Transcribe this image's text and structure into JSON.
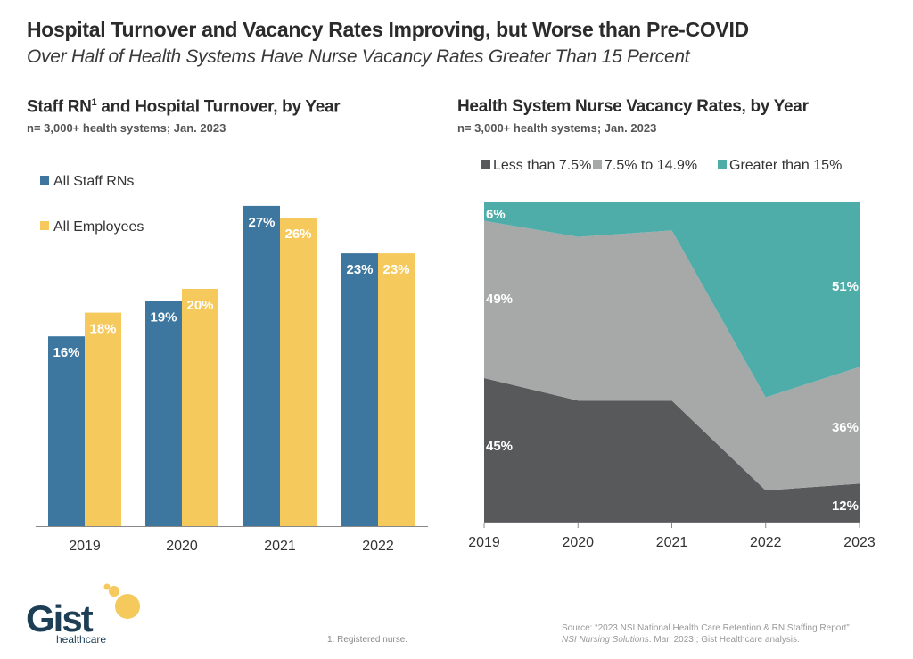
{
  "header": {
    "title": "Hospital Turnover and Vacancy Rates Improving, but Worse than Pre-COVID",
    "subtitle": "Over Half of Health Systems Have Nurse Vacancy Rates Greater Than 15 Percent"
  },
  "left_panel": {
    "title_main": "Staff RN",
    "title_sup": "1",
    "title_rest": " and Hospital Turnover, by Year",
    "note": "n= 3,000+ health systems; Jan. 2023"
  },
  "right_panel": {
    "title": "Health System Nurse Vacancy Rates, by Year",
    "note": "n= 3,000+ health systems; Jan. 2023"
  },
  "colors": {
    "staff_rn": "#3d77a0",
    "all_employees": "#f5c95c",
    "less_than_7_5": "#58595b",
    "mid": "#a7a9a9",
    "greater_than_15": "#4fada9"
  },
  "chart_data": [
    {
      "type": "bar",
      "title": "Staff RN and Hospital Turnover, by Year",
      "categories": [
        "2019",
        "2020",
        "2021",
        "2022"
      ],
      "series": [
        {
          "name": "All Staff RNs",
          "values": [
            16,
            19,
            27,
            23
          ],
          "labels": [
            "16%",
            "19%",
            "27%",
            "23%"
          ]
        },
        {
          "name": "All Employees",
          "values": [
            18,
            20,
            26,
            23
          ],
          "labels": [
            "18%",
            "20%",
            "26%",
            "23%"
          ]
        }
      ],
      "xlabel": "",
      "ylabel": "",
      "ylim": [
        0,
        27
      ],
      "grid": false,
      "legend": "top-left"
    },
    {
      "type": "area",
      "stacked": true,
      "percent_stacked": true,
      "title": "Health System Nurse Vacancy Rates, by Year",
      "x": [
        "2019",
        "2020",
        "2021",
        "2022",
        "2023"
      ],
      "series": [
        {
          "name": "Less than 7.5%",
          "values": [
            45,
            38,
            38,
            10,
            12
          ]
        },
        {
          "name": "7.5% to 14.9%",
          "values": [
            49,
            51,
            53,
            29,
            36
          ]
        },
        {
          "name": "Greater than 15%",
          "values": [
            6,
            11,
            9,
            61,
            51
          ]
        }
      ],
      "data_labels": [
        {
          "series": "Less than 7.5%",
          "x": "2019",
          "text": "45%"
        },
        {
          "series": "7.5% to 14.9%",
          "x": "2019",
          "text": "49%"
        },
        {
          "series": "Greater than 15%",
          "x": "2019",
          "text": "6%"
        },
        {
          "series": "Less than 7.5%",
          "x": "2023",
          "text": "12%"
        },
        {
          "series": "7.5% to 14.9%",
          "x": "2023",
          "text": "36%"
        },
        {
          "series": "Greater than 15%",
          "x": "2023",
          "text": "51%"
        }
      ],
      "ylim": [
        0,
        100
      ],
      "grid": false,
      "legend": "top"
    }
  ],
  "logo": {
    "word": "Gist",
    "tagline": "healthcare"
  },
  "footer": {
    "footnote": "1.  Registered nurse.",
    "source_line1": "Source: “2023 NSI National Health Care Retention & RN Staffing Report”.",
    "source_line2_italic": "NSI Nursing Solutions",
    "source_line2_rest": ". Mar. 2023;; Gist Healthcare analysis."
  }
}
